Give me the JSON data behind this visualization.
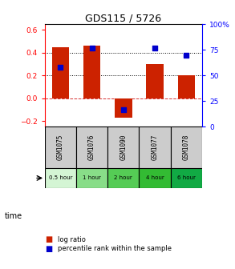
{
  "title": "GDS115 / 5726",
  "samples": [
    "GSM1075",
    "GSM1076",
    "GSM1090",
    "GSM1077",
    "GSM1078"
  ],
  "time_labels": [
    "0.5 hour",
    "1 hour",
    "2 hour",
    "4 hour",
    "6 hour"
  ],
  "time_colors": [
    "#d4f5d4",
    "#88dd88",
    "#55cc55",
    "#33bb33",
    "#11aa44"
  ],
  "log_ratios": [
    0.45,
    0.46,
    -0.17,
    0.3,
    0.2
  ],
  "percentile_ranks": [
    58,
    77,
    17,
    77,
    70
  ],
  "bar_color": "#cc2200",
  "dot_color": "#0000cc",
  "ylim_left": [
    -0.25,
    0.65
  ],
  "ylim_right": [
    0,
    100
  ],
  "yticks_left": [
    -0.2,
    0.0,
    0.2,
    0.4,
    0.6
  ],
  "yticks_right": [
    0,
    25,
    50,
    75,
    100
  ],
  "background_color": "#ffffff",
  "sample_bg_color": "#cccccc",
  "bar_width": 0.55
}
